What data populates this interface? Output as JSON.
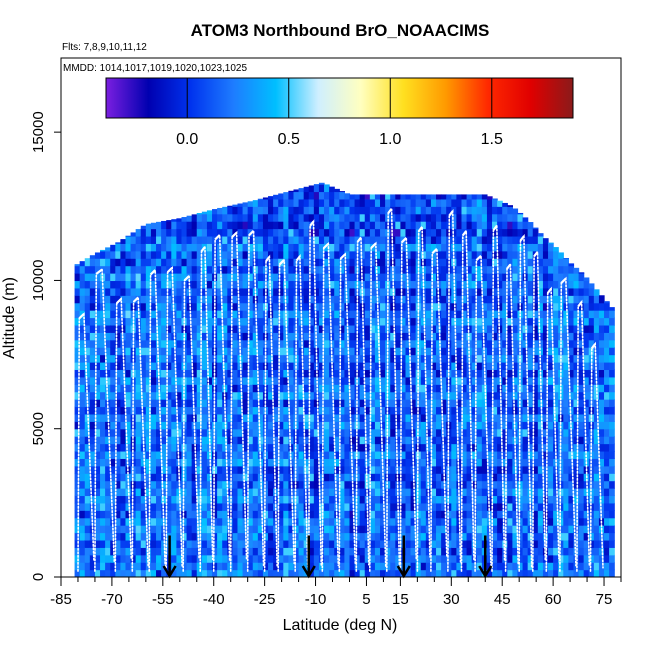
{
  "chart_data": {
    "type": "heatmap",
    "title": "ATOM3 Northbound BrO_NOAACIMS",
    "flights_note": "Flts: 7,8,9,10,11,12",
    "dates_note": "MMDD: 1014,1017,1019,1020,1023,1025",
    "xlabel": "Latitude (deg N)",
    "ylabel": "Altitude (m)",
    "xlim": [
      -85,
      80
    ],
    "ylim": [
      0,
      17500
    ],
    "x_ticks": [
      -85,
      -70,
      -55,
      -40,
      -25,
      -10,
      5,
      15,
      30,
      45,
      60,
      75
    ],
    "x_tick_labels": [
      "-85",
      "-70",
      "-55",
      "-40",
      "-25",
      "-10",
      "5",
      "15",
      "30",
      "45",
      "60",
      "75"
    ],
    "y_ticks": [
      0,
      5000,
      10000,
      15000
    ],
    "y_tick_labels": [
      "0",
      "5000",
      "10000",
      "15000"
    ],
    "colorbar": {
      "range": [
        -0.4,
        1.9
      ],
      "ticks": [
        0.0,
        0.5,
        1.0,
        1.5
      ],
      "tick_labels": [
        "0.0",
        "0.5",
        "1.0",
        "1.5"
      ],
      "colors": [
        "#7b1fe0",
        "#0000b0",
        "#0033ee",
        "#1e7cff",
        "#00bfff",
        "#cfefff",
        "#ffffc0",
        "#ffe020",
        "#ff9a00",
        "#ff2800",
        "#e00000",
        "#8b1a1a"
      ]
    },
    "coverage_top_altitude": [
      [
        -81,
        10500
      ],
      [
        -75,
        10900
      ],
      [
        -68,
        11300
      ],
      [
        -60,
        11900
      ],
      [
        -50,
        12100
      ],
      [
        -40,
        12400
      ],
      [
        -28,
        12700
      ],
      [
        -18,
        13000
      ],
      [
        -8,
        13300
      ],
      [
        0,
        12900
      ],
      [
        15,
        12900
      ],
      [
        30,
        12900
      ],
      [
        40,
        12900
      ],
      [
        48,
        12500
      ],
      [
        53,
        12000
      ],
      [
        57,
        11500
      ],
      [
        61,
        11100
      ],
      [
        65,
        10600
      ],
      [
        69,
        10200
      ],
      [
        72,
        9800
      ],
      [
        75,
        9400
      ],
      [
        78,
        9000
      ]
    ],
    "field_stats": {
      "typical": 0.15,
      "low": -0.15,
      "high": 0.5
    },
    "profile_latitudes": [
      -80,
      -75,
      -69,
      -64,
      -59,
      -54,
      -49,
      -44,
      -40,
      -35,
      -30,
      -25,
      -21,
      -16,
      -12,
      -8,
      -3,
      2,
      6,
      11,
      15,
      20,
      24,
      29,
      33,
      37,
      42,
      46,
      50,
      54,
      58,
      62,
      67,
      71,
      75
    ],
    "surface_arrows_latitude": [
      -53,
      -12,
      16,
      40
    ]
  }
}
